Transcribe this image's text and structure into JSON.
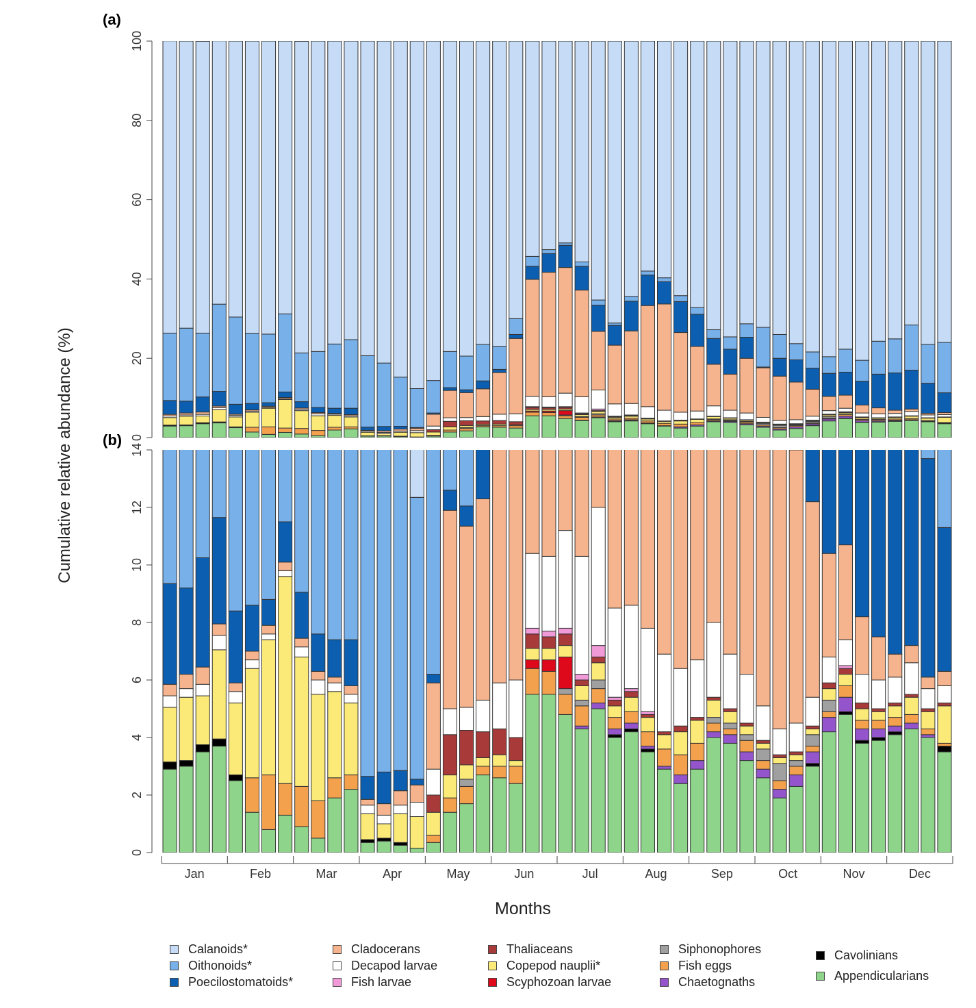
{
  "chart_data": {
    "type": "bar",
    "stacked": true,
    "ylabel": "Cumulative relative abundance (%)",
    "xlabel": "Months",
    "months": [
      "Jan",
      "Feb",
      "Mar",
      "Apr",
      "May",
      "Jun",
      "Jul",
      "Aug",
      "Sep",
      "Oct",
      "Nov",
      "Dec"
    ],
    "bars_per_month": [
      4,
      4,
      4,
      4,
      4,
      4,
      4,
      4,
      4,
      4,
      4,
      4
    ],
    "colors": {
      "Calanoids*": "#c6dcf6",
      "Oithonoids*": "#78b0ea",
      "Poecilostomatoids*": "#0c5fb0",
      "Cladocerans": "#f5b48e",
      "Decapod larvae": "#ffffff",
      "Fish larvae": "#f19ad8",
      "Thaliaceans": "#a83a3a",
      "Copepod nauplii*": "#fbe978",
      "Scyphozoan larvae": "#de0a1c",
      "Siphonophores": "#a0a0a0",
      "Fish eggs": "#f4a14e",
      "Chaetognaths": "#9455cc",
      "Cavolinians": "#000000",
      "Appendicularians": "#8ed48a"
    },
    "stack_order": [
      "Appendicularians",
      "Cavolinians",
      "Chaetognaths",
      "Fish eggs",
      "Siphonophores",
      "Scyphozoan larvae",
      "Copepod nauplii*",
      "Thaliaceans",
      "Fish larvae",
      "Decapod larvae",
      "Cladocerans",
      "Poecilostomatoids*",
      "Oithonoids*",
      "Calanoids*"
    ],
    "legend": [
      [
        "Calanoids*",
        "Oithonoids*",
        "Poecilostomatoids*"
      ],
      [
        "Cladocerans",
        "Decapod larvae",
        "Fish larvae"
      ],
      [
        "Thaliaceans",
        "Copepod nauplii*",
        "Scyphozoan larvae"
      ],
      [
        "Siphonophores",
        "Fish eggs",
        "Chaetognaths"
      ],
      [
        "Cavolinians",
        "Appendicularians"
      ]
    ],
    "panels": [
      {
        "label": "(a)",
        "ylim": [
          0,
          100
        ],
        "yticks": [
          0,
          20,
          40,
          60,
          80,
          100
        ]
      },
      {
        "label": "(b)",
        "ylim": [
          0,
          14
        ],
        "yticks": [
          0,
          2,
          4,
          6,
          8,
          10,
          12,
          14
        ]
      }
    ],
    "bars": [
      {
        "Appendicularians": 2.9,
        "Cavolinians": 0.25,
        "Fish eggs": 0,
        "Copepod nauplii*": 1.9,
        "Decapod larvae": 0.4,
        "Cladocerans": 0.4,
        "Poecilostomatoids*": 3.5,
        "Oithonoids*": 17,
        "Calanoids*": 73.7
      },
      {
        "Appendicularians": 3.0,
        "Cavolinians": 0.2,
        "Copepod nauplii*": 2.2,
        "Decapod larvae": 0.3,
        "Cladocerans": 0.5,
        "Poecilostomatoids*": 3.0,
        "Oithonoids*": 18.4,
        "Calanoids*": 72.4
      },
      {
        "Appendicularians": 3.5,
        "Cavolinians": 0.25,
        "Copepod nauplii*": 1.7,
        "Decapod larvae": 0.4,
        "Cladocerans": 0.6,
        "Poecilostomatoids*": 3.8,
        "Oithonoids*": 16.1,
        "Calanoids*": 73.6
      },
      {
        "Appendicularians": 3.7,
        "Cavolinians": 0.25,
        "Copepod nauplii*": 3.1,
        "Decapod larvae": 0.5,
        "Cladocerans": 0.4,
        "Poecilostomatoids*": 3.7,
        "Oithonoids*": 22.0,
        "Calanoids*": 66.4
      },
      {
        "Appendicularians": 2.5,
        "Cavolinians": 0.2,
        "Copepod nauplii*": 2.5,
        "Decapod larvae": 0.4,
        "Cladocerans": 0.3,
        "Poecilostomatoids*": 2.5,
        "Oithonoids*": 22.0,
        "Calanoids*": 69.6
      },
      {
        "Appendicularians": 1.4,
        "Fish eggs": 1.2,
        "Copepod nauplii*": 3.8,
        "Decapod larvae": 0.3,
        "Cladocerans": 0.3,
        "Poecilostomatoids*": 1.6,
        "Oithonoids*": 17.7,
        "Calanoids*": 73.7
      },
      {
        "Appendicularians": 0.8,
        "Fish eggs": 1.9,
        "Copepod nauplii*": 4.7,
        "Decapod larvae": 0.2,
        "Cladocerans": 0.3,
        "Poecilostomatoids*": 0.9,
        "Oithonoids*": 17.3,
        "Calanoids*": 73.9
      },
      {
        "Appendicularians": 1.3,
        "Fish eggs": 1.1,
        "Copepod nauplii*": 7.2,
        "Decapod larvae": 0.2,
        "Cladocerans": 0.3,
        "Poecilostomatoids*": 1.4,
        "Oithonoids*": 19.7,
        "Calanoids*": 68.8
      },
      {
        "Appendicularians": 0.9,
        "Fish eggs": 1.4,
        "Copepod nauplii*": 4.5,
        "Decapod larvae": 0.35,
        "Cladocerans": 0.3,
        "Poecilostomatoids*": 1.6,
        "Oithonoids*": 12.3,
        "Calanoids*": 78.6
      },
      {
        "Appendicularians": 0.5,
        "Fish eggs": 1.3,
        "Copepod nauplii*": 3.7,
        "Decapod larvae": 0.5,
        "Cladocerans": 0.3,
        "Poecilostomatoids*": 1.3,
        "Oithonoids*": 14.1,
        "Calanoids*": 78.3
      },
      {
        "Appendicularians": 1.9,
        "Fish eggs": 0.7,
        "Copepod nauplii*": 3.0,
        "Decapod larvae": 0.3,
        "Cladocerans": 0.2,
        "Poecilostomatoids*": 1.3,
        "Oithonoids*": 16.2,
        "Calanoids*": 76.4
      },
      {
        "Appendicularians": 2.2,
        "Fish eggs": 0.5,
        "Copepod nauplii*": 2.5,
        "Decapod larvae": 0.3,
        "Cladocerans": 0.3,
        "Poecilostomatoids*": 1.6,
        "Oithonoids*": 17.3,
        "Calanoids*": 75.3
      },
      {
        "Appendicularians": 0.35,
        "Cavolinians": 0.1,
        "Copepod nauplii*": 0.9,
        "Decapod larvae": 0.3,
        "Cladocerans": 0.2,
        "Poecilostomatoids*": 0.8,
        "Oithonoids*": 18.0,
        "Calanoids*": 79.35
      },
      {
        "Appendicularians": 0.4,
        "Cavolinians": 0.1,
        "Copepod nauplii*": 0.5,
        "Decapod larvae": 0.3,
        "Cladocerans": 0.4,
        "Poecilostomatoids*": 1.1,
        "Oithonoids*": 16.0,
        "Calanoids*": 81.2
      },
      {
        "Appendicularians": 0.25,
        "Cavolinians": 0.1,
        "Copepod nauplii*": 1.0,
        "Decapod larvae": 0.3,
        "Cladocerans": 0.5,
        "Poecilostomatoids*": 0.7,
        "Oithonoids*": 12.4,
        "Calanoids*": 84.75
      },
      {
        "Appendicularians": 0.15,
        "Copepod nauplii*": 1.1,
        "Decapod larvae": 0.5,
        "Cladocerans": 0.6,
        "Poecilostomatoids*": 0.2,
        "Oithonoids*": 9.8,
        "Calanoids*": 87.65
      },
      {
        "Appendicularians": 0.35,
        "Fish eggs": 0.25,
        "Copepod nauplii*": 0.8,
        "Thaliaceans": 0.6,
        "Decapod larvae": 0.9,
        "Cladocerans": 3.0,
        "Poecilostomatoids*": 0.3,
        "Oithonoids*": 8.2,
        "Calanoids*": 85.6
      },
      {
        "Appendicularians": 1.4,
        "Fish eggs": 0.5,
        "Copepod nauplii*": 0.8,
        "Thaliaceans": 1.4,
        "Decapod larvae": 0.9,
        "Cladocerans": 6.9,
        "Poecilostomatoids*": 0.7,
        "Oithonoids*": 9.1,
        "Calanoids*": 78.3
      },
      {
        "Appendicularians": 1.7,
        "Fish eggs": 0.6,
        "Siphonophores": 0.25,
        "Copepod nauplii*": 0.5,
        "Thaliaceans": 1.2,
        "Decapod larvae": 0.8,
        "Cladocerans": 6.3,
        "Poecilostomatoids*": 0.7,
        "Oithonoids*": 8.5,
        "Calanoids*": 79.45
      },
      {
        "Appendicularians": 2.7,
        "Fish eggs": 0.3,
        "Copepod nauplii*": 0.3,
        "Thaliaceans": 0.9,
        "Decapod larvae": 1.1,
        "Cladocerans": 7.0,
        "Poecilostomatoids*": 2.0,
        "Oithonoids*": 9.2,
        "Calanoids*": 76.5
      },
      {
        "Appendicularians": 2.6,
        "Fish eggs": 0.4,
        "Copepod nauplii*": 0.4,
        "Thaliaceans": 0.9,
        "Decapod larvae": 1.6,
        "Cladocerans": 10.5,
        "Poecilostomatoids*": 0.8,
        "Oithonoids*": 5.8,
        "Calanoids*": 77.0
      },
      {
        "Appendicularians": 2.4,
        "Fish eggs": 0.6,
        "Copepod nauplii*": 0.2,
        "Thaliaceans": 0.8,
        "Decapod larvae": 2.0,
        "Cladocerans": 19.0,
        "Poecilostomatoids*": 1.0,
        "Oithonoids*": 4.0,
        "Calanoids*": 70.0
      },
      {
        "Appendicularians": 5.5,
        "Fish eggs": 0.9,
        "Copepod nauplii*": 0.4,
        "Scyphozoan larvae": 0.3,
        "Thaliaceans": 0.5,
        "Fish larvae": 0.2,
        "Decapod larvae": 2.6,
        "Cladocerans": 29.5,
        "Poecilostomatoids*": 3.3,
        "Oithonoids*": 2.5,
        "Calanoids*": 54.3
      },
      {
        "Appendicularians": 5.5,
        "Fish eggs": 0.8,
        "Copepod nauplii*": 0.4,
        "Scyphozoan larvae": 0.4,
        "Thaliaceans": 0.4,
        "Fish larvae": 0.2,
        "Decapod larvae": 2.6,
        "Cladocerans": 31.4,
        "Poecilostomatoids*": 4.7,
        "Oithonoids*": 1.0,
        "Calanoids*": 52.6
      },
      {
        "Appendicularians": 4.8,
        "Fish eggs": 0.7,
        "Siphonophores": 0.2,
        "Copepod nauplii*": 0.4,
        "Scyphozoan larvae": 1.1,
        "Thaliaceans": 0.4,
        "Fish larvae": 0.2,
        "Decapod larvae": 3.4,
        "Cladocerans": 31.7,
        "Poecilostomatoids*": 5.6,
        "Oithonoids*": 0.6,
        "Calanoids*": 50.9
      },
      {
        "Appendicularians": 4.3,
        "Chaetognaths": 0.1,
        "Fish eggs": 0.7,
        "Siphonophores": 0.2,
        "Copepod nauplii*": 0.5,
        "Thaliaceans": 0.2,
        "Fish larvae": 0.2,
        "Decapod larvae": 4.1,
        "Cladocerans": 26.9,
        "Poecilostomatoids*": 6.0,
        "Oithonoids*": 1.1,
        "Calanoids*": 55.7
      },
      {
        "Appendicularians": 5.0,
        "Chaetognaths": 0.2,
        "Fish eggs": 0.5,
        "Siphonophores": 0.3,
        "Copepod nauplii*": 0.6,
        "Thaliaceans": 0.2,
        "Fish larvae": 0.4,
        "Decapod larvae": 4.8,
        "Cladocerans": 14.8,
        "Poecilostomatoids*": 6.6,
        "Oithonoids*": 1.3,
        "Calanoids*": 65.3
      },
      {
        "Appendicularians": 4.0,
        "Cavolinians": 0.1,
        "Chaetognaths": 0.2,
        "Fish eggs": 0.4,
        "Copepod nauplii*": 0.4,
        "Thaliaceans": 0.2,
        "Fish larvae": 0.1,
        "Decapod larvae": 3.1,
        "Cladocerans": 14.8,
        "Poecilostomatoids*": 5.0,
        "Oithonoids*": 0.6,
        "Calanoids*": 71.1
      },
      {
        "Appendicularians": 4.2,
        "Cavolinians": 0.1,
        "Chaetognaths": 0.2,
        "Fish eggs": 0.4,
        "Copepod nauplii*": 0.5,
        "Thaliaceans": 0.2,
        "Fish larvae": 0.1,
        "Decapod larvae": 2.9,
        "Cladocerans": 18.3,
        "Poecilostomatoids*": 7.5,
        "Oithonoids*": 1.2,
        "Calanoids*": 64.4
      },
      {
        "Appendicularians": 3.5,
        "Cavolinians": 0.1,
        "Chaetognaths": 0.1,
        "Fish eggs": 0.5,
        "Copepod nauplii*": 0.5,
        "Thaliaceans": 0.1,
        "Fish larvae": 0.1,
        "Decapod larvae": 2.9,
        "Cladocerans": 25.5,
        "Poecilostomatoids*": 7.7,
        "Oithonoids*": 1.0,
        "Calanoids*": 58.0
      },
      {
        "Appendicularians": 2.9,
        "Chaetognaths": 0.1,
        "Fish eggs": 0.6,
        "Copepod nauplii*": 0.5,
        "Thaliaceans": 0.1,
        "Decapod larvae": 2.7,
        "Cladocerans": 26.8,
        "Poecilostomatoids*": 5.6,
        "Oithonoids*": 1.0,
        "Calanoids*": 59.7
      },
      {
        "Appendicularians": 2.4,
        "Chaetognaths": 0.3,
        "Fish eggs": 0.7,
        "Copepod nauplii*": 0.8,
        "Thaliaceans": 0.2,
        "Decapod larvae": 2.0,
        "Cladocerans": 20.1,
        "Poecilostomatoids*": 7.8,
        "Oithonoids*": 1.5,
        "Calanoids*": 64.2
      },
      {
        "Appendicularians": 2.9,
        "Chaetognaths": 0.3,
        "Fish eggs": 0.6,
        "Copepod nauplii*": 0.8,
        "Thaliaceans": 0.1,
        "Decapod larvae": 2.0,
        "Cladocerans": 16.3,
        "Poecilostomatoids*": 8.1,
        "Oithonoids*": 1.7,
        "Calanoids*": 67.2
      },
      {
        "Appendicularians": 4.0,
        "Chaetognaths": 0.2,
        "Fish eggs": 0.3,
        "Siphonophores": 0.2,
        "Copepod nauplii*": 0.6,
        "Thaliaceans": 0.1,
        "Decapod larvae": 2.6,
        "Cladocerans": 10.5,
        "Poecilostomatoids*": 6.5,
        "Oithonoids*": 2.2,
        "Calanoids*": 72.8
      },
      {
        "Appendicularians": 3.8,
        "Chaetognaths": 0.3,
        "Fish eggs": 0.2,
        "Siphonophores": 0.2,
        "Copepod nauplii*": 0.4,
        "Thaliaceans": 0.1,
        "Decapod larvae": 1.9,
        "Cladocerans": 9.1,
        "Poecilostomatoids*": 6.3,
        "Oithonoids*": 3.1,
        "Calanoids*": 74.6
      },
      {
        "Appendicularians": 3.2,
        "Chaetognaths": 0.3,
        "Fish eggs": 0.4,
        "Siphonophores": 0.2,
        "Copepod nauplii*": 0.3,
        "Thaliaceans": 0.1,
        "Decapod larvae": 1.7,
        "Cladocerans": 13.8,
        "Poecilostomatoids*": 5.3,
        "Oithonoids*": 3.4,
        "Calanoids*": 71.3
      },
      {
        "Appendicularians": 2.6,
        "Chaetognaths": 0.3,
        "Fish eggs": 0.3,
        "Siphonophores": 0.4,
        "Copepod nauplii*": 0.2,
        "Thaliaceans": 0.1,
        "Decapod larvae": 1.2,
        "Cladocerans": 12.5,
        "Poecilostomatoids*": 0.2,
        "Oithonoids*": 10.0,
        "Calanoids*": 72.2
      },
      {
        "Appendicularians": 1.9,
        "Chaetognaths": 0.3,
        "Fish eggs": 0.3,
        "Siphonophores": 0.6,
        "Copepod nauplii*": 0.2,
        "Thaliaceans": 0.1,
        "Decapod larvae": 0.9,
        "Cladocerans": 11.2,
        "Poecilostomatoids*": 4.5,
        "Oithonoids*": 6.0,
        "Calanoids*": 74.0
      },
      {
        "Appendicularians": 2.3,
        "Chaetognaths": 0.4,
        "Fish eggs": 0.3,
        "Siphonophores": 0.2,
        "Copepod nauplii*": 0.2,
        "Thaliaceans": 0.1,
        "Decapod larvae": 1.0,
        "Cladocerans": 9.5,
        "Poecilostomatoids*": 5.6,
        "Oithonoids*": 4.1,
        "Calanoids*": 76.3
      },
      {
        "Appendicularians": 3.0,
        "Cavolinians": 0.1,
        "Chaetognaths": 0.4,
        "Fish eggs": 0.2,
        "Siphonophores": 0.4,
        "Copepod nauplii*": 0.2,
        "Thaliaceans": 0.1,
        "Decapod larvae": 1.0,
        "Cladocerans": 6.8,
        "Poecilostomatoids*": 5.3,
        "Oithonoids*": 4.1,
        "Calanoids*": 78.4
      },
      {
        "Appendicularians": 4.2,
        "Chaetognaths": 0.5,
        "Fish eggs": 0.2,
        "Siphonophores": 0.4,
        "Copepod nauplii*": 0.4,
        "Thaliaceans": 0.2,
        "Decapod larvae": 0.9,
        "Cladocerans": 3.6,
        "Poecilostomatoids*": 5.8,
        "Oithonoids*": 4.2,
        "Calanoids*": 79.6
      },
      {
        "Appendicularians": 4.8,
        "Cavolinians": 0.1,
        "Chaetognaths": 0.5,
        "Fish eggs": 0.4,
        "Copepod nauplii*": 0.4,
        "Thaliaceans": 0.2,
        "Fish larvae": 0.1,
        "Decapod larvae": 0.9,
        "Cladocerans": 3.3,
        "Poecilostomatoids*": 5.8,
        "Oithonoids*": 5.8,
        "Calanoids*": 77.7
      },
      {
        "Appendicularians": 3.8,
        "Cavolinians": 0.1,
        "Chaetognaths": 0.4,
        "Fish eggs": 0.3,
        "Copepod nauplii*": 0.4,
        "Thaliaceans": 0.2,
        "Decapod larvae": 1.0,
        "Cladocerans": 2.0,
        "Poecilostomatoids*": 6.0,
        "Oithonoids*": 5.3,
        "Calanoids*": 80.5
      },
      {
        "Appendicularians": 3.9,
        "Cavolinians": 0.1,
        "Chaetognaths": 0.3,
        "Fish eggs": 0.3,
        "Copepod nauplii*": 0.3,
        "Thaliaceans": 0.1,
        "Decapod larvae": 1.0,
        "Cladocerans": 1.5,
        "Poecilostomatoids*": 8.5,
        "Oithonoids*": 8.3,
        "Calanoids*": 75.7
      },
      {
        "Appendicularians": 4.1,
        "Cavolinians": 0.1,
        "Chaetognaths": 0.2,
        "Fish eggs": 0.3,
        "Copepod nauplii*": 0.4,
        "Thaliaceans": 0.1,
        "Decapod larvae": 0.9,
        "Cladocerans": 0.8,
        "Poecilostomatoids*": 9.4,
        "Oithonoids*": 8.6,
        "Calanoids*": 75.1
      },
      {
        "Appendicularians": 4.3,
        "Chaetognaths": 0.2,
        "Fish eggs": 0.3,
        "Copepod nauplii*": 0.6,
        "Thaliaceans": 0.1,
        "Decapod larvae": 1.1,
        "Cladocerans": 0.6,
        "Poecilostomatoids*": 9.8,
        "Oithonoids*": 11.4,
        "Calanoids*": 71.6
      },
      {
        "Appendicularians": 4.0,
        "Chaetognaths": 0.1,
        "Fish eggs": 0.2,
        "Copepod nauplii*": 0.6,
        "Thaliaceans": 0.1,
        "Decapod larvae": 0.7,
        "Cladocerans": 0.4,
        "Poecilostomatoids*": 7.6,
        "Oithonoids*": 9.8,
        "Calanoids*": 76.5
      },
      {
        "Appendicularians": 3.5,
        "Cavolinians": 0.2,
        "Fish eggs": 0.1,
        "Copepod nauplii*": 1.3,
        "Thaliaceans": 0.1,
        "Decapod larvae": 0.6,
        "Cladocerans": 0.5,
        "Poecilostomatoids*": 5.0,
        "Oithonoids*": 12.7,
        "Calanoids*": 76.0
      }
    ]
  }
}
